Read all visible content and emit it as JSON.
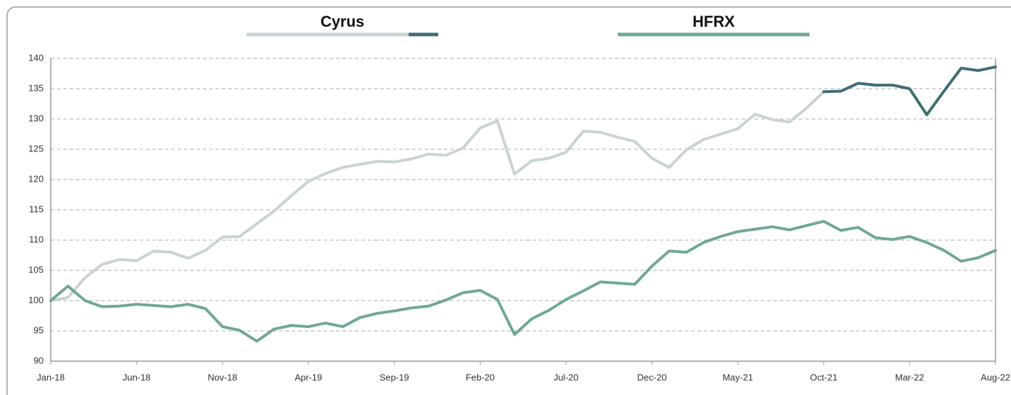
{
  "chart_data": {
    "type": "line",
    "categories": [
      "Jan-18",
      null,
      null,
      null,
      null,
      "Jun-18",
      null,
      null,
      null,
      null,
      "Nov-18",
      null,
      null,
      null,
      null,
      "Apr-19",
      null,
      null,
      null,
      null,
      "Sep-19",
      null,
      null,
      null,
      null,
      "Feb-20",
      null,
      null,
      null,
      null,
      "Jul-20",
      null,
      null,
      null,
      null,
      "Dec-20",
      null,
      null,
      null,
      null,
      "May-21",
      null,
      null,
      null,
      null,
      "Oct-21",
      null,
      null,
      null,
      null,
      "Mar-22",
      null,
      null,
      null,
      null,
      "Aug-22"
    ],
    "series": [
      {
        "name": "Cyrus",
        "color": "#c9d3d5",
        "recent_color": "#3f6e74",
        "recent_from": 45,
        "values": [
          100,
          100.5,
          103.8,
          106,
          106.8,
          106.6,
          108.2,
          108,
          107,
          108.3,
          110.5,
          110.6,
          112.7,
          114.8,
          117.3,
          119.7,
          121,
          122,
          122.5,
          123,
          122.9,
          123.4,
          124.2,
          124,
          125.2,
          128.5,
          129.7,
          120.9,
          123.1,
          123.5,
          124.5,
          128,
          127.8,
          127,
          126.3,
          123.5,
          122,
          124.9,
          126.6,
          127.5,
          128.4,
          130.8,
          129.9,
          129.5,
          131.8,
          134.5,
          134.6,
          135.9,
          135.6,
          135.6,
          135,
          130.7,
          134.6,
          138.4,
          138,
          138.6
        ]
      },
      {
        "name": "HFRX",
        "color": "#6fa894",
        "values": [
          100,
          102.4,
          100,
          99,
          99.1,
          99.4,
          99.2,
          99,
          99.4,
          98.7,
          95.7,
          95.1,
          93.3,
          95.3,
          95.9,
          95.7,
          96.3,
          95.7,
          97.2,
          97.9,
          98.3,
          98.8,
          99.1,
          100.1,
          101.3,
          101.7,
          100.2,
          94.4,
          97,
          98.4,
          100.2,
          101.6,
          103.1,
          102.9,
          102.7,
          105.7,
          108.2,
          108,
          109.6,
          110.6,
          111.4,
          111.8,
          112.2,
          111.7,
          112.4,
          113.1,
          111.6,
          112.1,
          110.4,
          110.1,
          110.6,
          109.6,
          108.3,
          106.5,
          107.1,
          108.3
        ]
      }
    ],
    "ylim": [
      90,
      140
    ],
    "yticks": [
      90,
      95,
      100,
      105,
      110,
      115,
      120,
      125,
      130,
      135,
      140
    ],
    "grid": true,
    "legend": "top"
  }
}
